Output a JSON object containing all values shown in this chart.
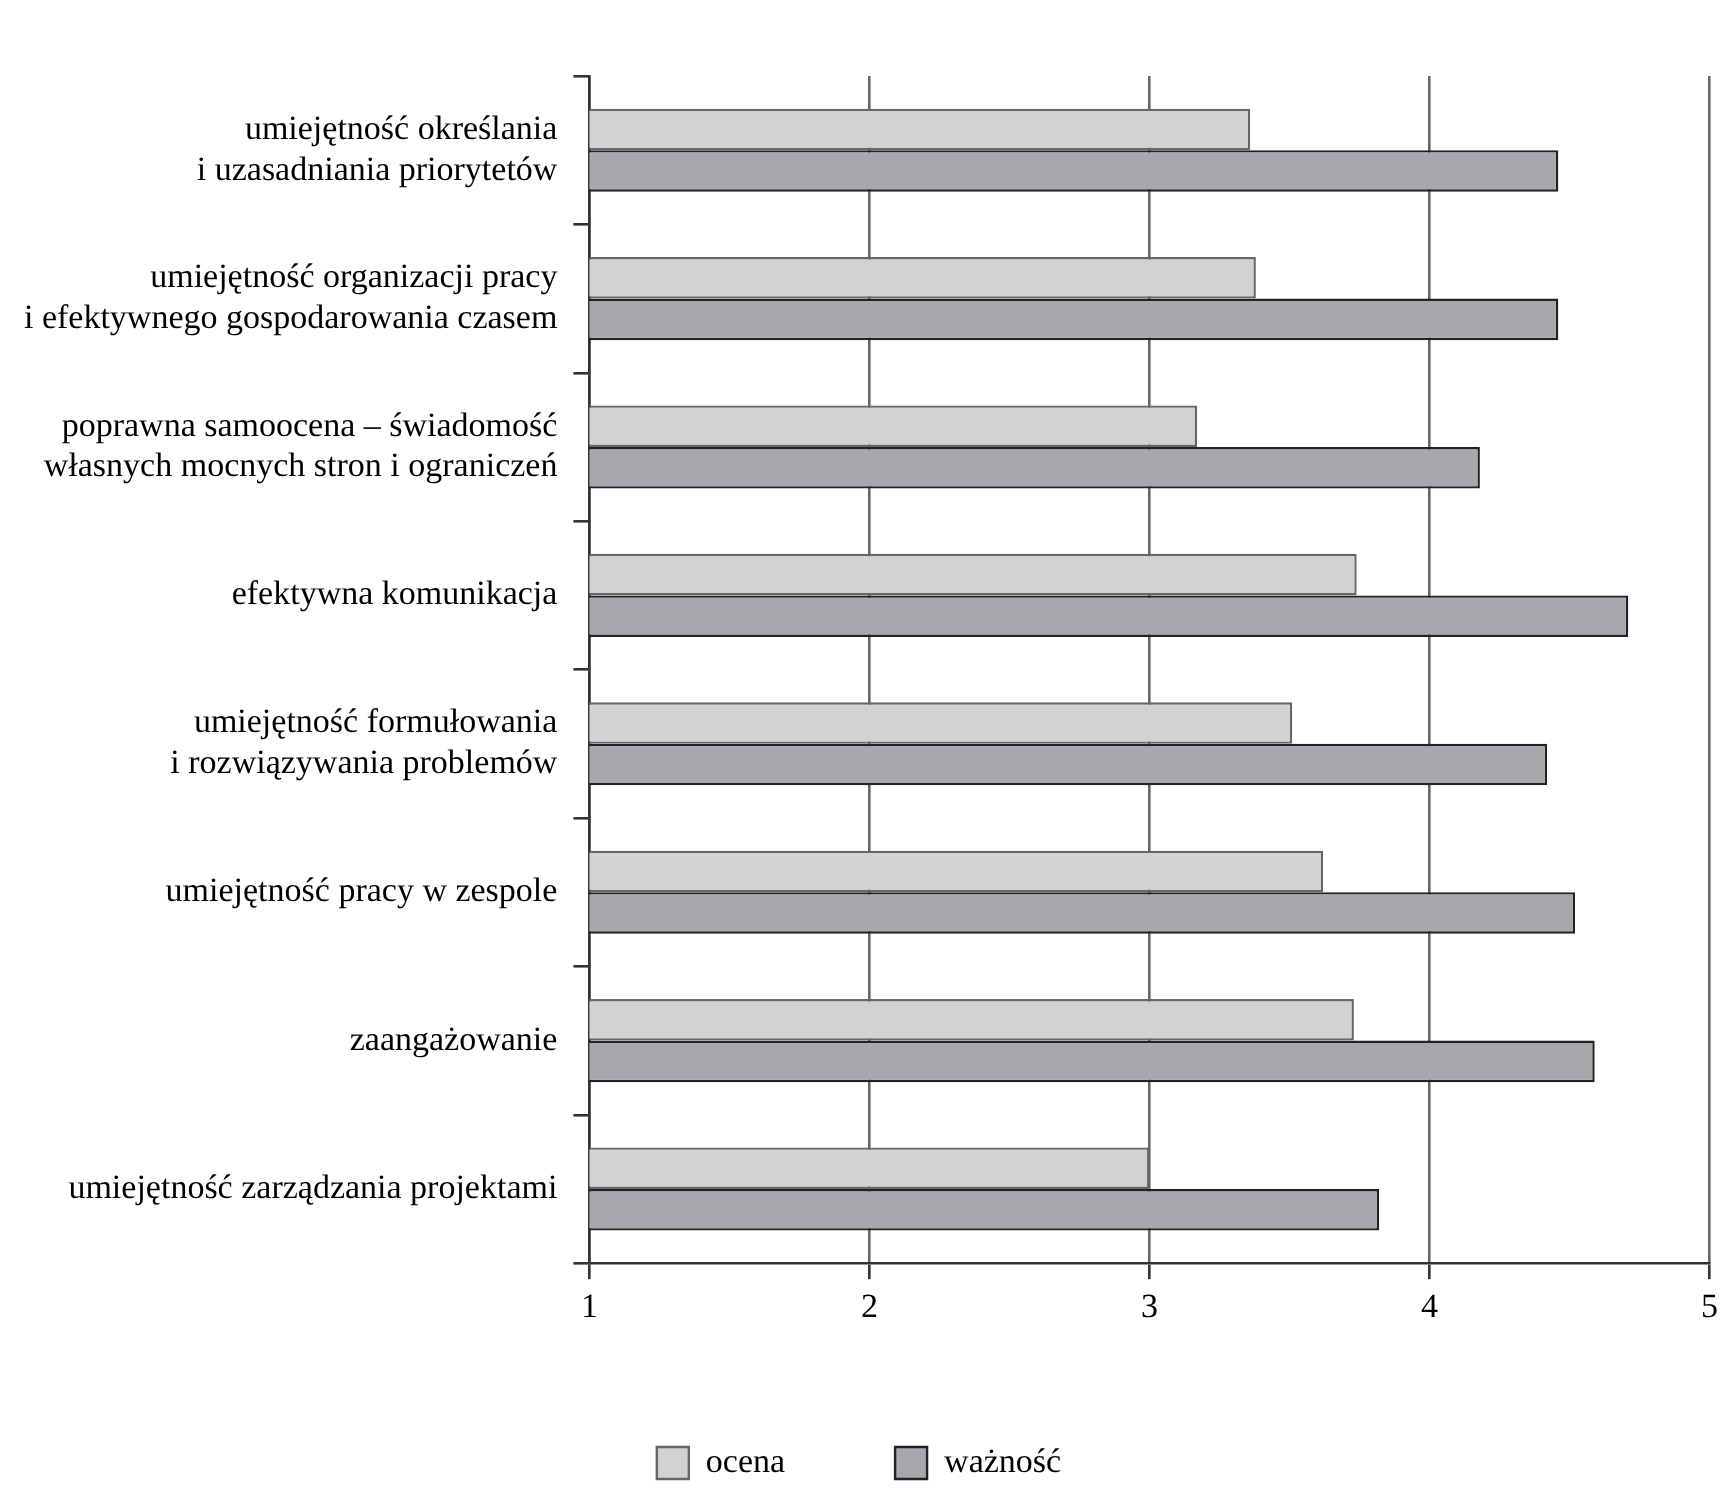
{
  "chart_data": {
    "type": "bar",
    "orientation": "horizontal",
    "categories": [
      "umiejętność określania\ni uzasadniania priorytetów",
      "umiejętność organizacji pracy\ni efektywnego gospodarowania czasem",
      "poprawna samoocena – świadomość\nwłasnych mocnych stron i ograniczeń",
      "efektywna komunikacja",
      "umiejętność formułowania\ni rozwiązywania problemów",
      "umiejętność pracy w zespole",
      "zaangażowanie",
      "umiejętność zarządzania projektami"
    ],
    "series": [
      {
        "name": "ocena",
        "color": "#d1d2d4",
        "values": [
          3.36,
          3.38,
          3.17,
          3.74,
          3.51,
          3.62,
          3.73,
          3.0
        ]
      },
      {
        "name": "ważność",
        "color": "#a7a8ab",
        "values": [
          4.46,
          4.46,
          4.18,
          4.71,
          4.42,
          4.52,
          4.59,
          3.82
        ]
      }
    ],
    "xlim": [
      1,
      5
    ],
    "xticks": [
      1,
      2,
      3,
      4,
      5
    ],
    "grid": "x",
    "legend": "bottom"
  }
}
